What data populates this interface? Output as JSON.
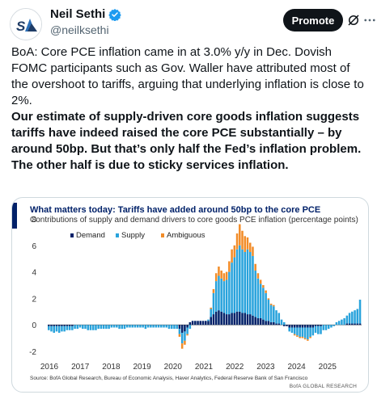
{
  "header": {
    "display_name": "Neil Sethi",
    "handle": "@neilksethi",
    "promote_label": "Promote",
    "icons": [
      "verified-badge-icon",
      "grok-icon",
      "more-icon"
    ],
    "colors": {
      "verified": "#1d9bf0",
      "promote_bg": "#0f1419"
    }
  },
  "tweet": {
    "paragraph1": "BoA: Core PCE inflation came in at 3.0% y/y in Dec. Dovish FOMC participants such as Gov. Waller have attributed most of the overshoot to tariffs, arguing that underlying inflation is close to 2%.",
    "paragraph2": "Our estimate of supply-driven core goods inflation suggests tariffs have indeed raised the core PCE substantially – by around 50bp. But that’s only half the Fed’s inflation problem. The other half is due to sticky services inflation."
  },
  "chart_data": {
    "type": "bar",
    "title": "What matters today: Tariffs have added around 50bp to the core PCE",
    "subtitle": "Contributions of supply and demand drivers to core goods PCE inflation (percentage points)",
    "stacked": true,
    "xlabel": "",
    "ylabel": "",
    "ylim": [
      -2,
      8
    ],
    "yticks": [
      -2,
      0,
      2,
      4,
      6,
      8
    ],
    "x_tick_labels": [
      "2016",
      "2017",
      "2018",
      "2019",
      "2020",
      "2021",
      "2022",
      "2023",
      "2024",
      "2025"
    ],
    "x_range": [
      "2016-01",
      "2025-12"
    ],
    "legend_position": "top-left",
    "grid": false,
    "colors": {
      "Demand": "#012169",
      "Supply": "#29a3dc",
      "Ambiguous": "#f28c28"
    },
    "x": [
      "2016-01",
      "2016-02",
      "2016-03",
      "2016-04",
      "2016-05",
      "2016-06",
      "2016-07",
      "2016-08",
      "2016-09",
      "2016-10",
      "2016-11",
      "2016-12",
      "2017-01",
      "2017-02",
      "2017-03",
      "2017-04",
      "2017-05",
      "2017-06",
      "2017-07",
      "2017-08",
      "2017-09",
      "2017-10",
      "2017-11",
      "2017-12",
      "2018-01",
      "2018-02",
      "2018-03",
      "2018-04",
      "2018-05",
      "2018-06",
      "2018-07",
      "2018-08",
      "2018-09",
      "2018-10",
      "2018-11",
      "2018-12",
      "2019-01",
      "2019-02",
      "2019-03",
      "2019-04",
      "2019-05",
      "2019-06",
      "2019-07",
      "2019-08",
      "2019-09",
      "2019-10",
      "2019-11",
      "2019-12",
      "2020-01",
      "2020-02",
      "2020-03",
      "2020-04",
      "2020-05",
      "2020-06",
      "2020-07",
      "2020-08",
      "2020-09",
      "2020-10",
      "2020-11",
      "2020-12",
      "2021-01",
      "2021-02",
      "2021-03",
      "2021-04",
      "2021-05",
      "2021-06",
      "2021-07",
      "2021-08",
      "2021-09",
      "2021-10",
      "2021-11",
      "2021-12",
      "2022-01",
      "2022-02",
      "2022-03",
      "2022-04",
      "2022-05",
      "2022-06",
      "2022-07",
      "2022-08",
      "2022-09",
      "2022-10",
      "2022-11",
      "2022-12",
      "2023-01",
      "2023-02",
      "2023-03",
      "2023-04",
      "2023-05",
      "2023-06",
      "2023-07",
      "2023-08",
      "2023-09",
      "2023-10",
      "2023-11",
      "2023-12",
      "2024-01",
      "2024-02",
      "2024-03",
      "2024-04",
      "2024-05",
      "2024-06",
      "2024-07",
      "2024-08",
      "2024-09",
      "2024-10",
      "2024-11",
      "2024-12",
      "2025-01",
      "2025-02",
      "2025-03",
      "2025-04",
      "2025-05",
      "2025-06",
      "2025-07",
      "2025-08",
      "2025-09",
      "2025-10",
      "2025-11",
      "2025-12"
    ],
    "series": [
      {
        "name": "Demand",
        "values": [
          -0.1,
          -0.1,
          -0.1,
          -0.1,
          -0.1,
          -0.1,
          -0.1,
          -0.1,
          -0.1,
          -0.1,
          0.0,
          0.0,
          0.0,
          0.0,
          0.0,
          0.0,
          0.0,
          0.0,
          0.0,
          0.0,
          0.0,
          0.0,
          0.0,
          0.0,
          0.0,
          0.0,
          0.0,
          0.0,
          0.0,
          0.0,
          0.0,
          0.0,
          0.0,
          0.0,
          0.0,
          0.0,
          0.0,
          0.0,
          0.0,
          0.0,
          0.0,
          0.0,
          0.0,
          0.0,
          0.0,
          0.0,
          0.0,
          0.0,
          0.0,
          0.0,
          -0.3,
          -0.6,
          -0.5,
          -0.2,
          0.2,
          0.3,
          0.3,
          0.3,
          0.3,
          0.3,
          0.3,
          0.3,
          0.6,
          0.8,
          1.0,
          1.1,
          1.0,
          0.9,
          0.8,
          0.8,
          0.9,
          0.9,
          1.0,
          1.0,
          0.9,
          0.9,
          0.8,
          0.8,
          0.7,
          0.6,
          0.5,
          0.5,
          0.4,
          0.3,
          0.3,
          0.2,
          0.2,
          0.1,
          0.1,
          0.0,
          -0.1,
          -0.1,
          -0.2,
          -0.2,
          -0.2,
          -0.2,
          -0.2,
          -0.2,
          -0.2,
          -0.2,
          -0.2,
          -0.2,
          -0.1,
          -0.1,
          -0.1,
          0.0,
          0.0,
          0.0,
          0.0,
          0.0,
          0.0,
          0.0,
          0.0,
          0.0,
          0.1,
          0.1,
          0.1,
          0.1,
          0.1,
          0.1
        ]
      },
      {
        "name": "Supply",
        "values": [
          -0.3,
          -0.4,
          -0.5,
          -0.4,
          -0.5,
          -0.4,
          -0.4,
          -0.3,
          -0.3,
          -0.3,
          -0.3,
          -0.3,
          -0.2,
          -0.3,
          -0.3,
          -0.4,
          -0.4,
          -0.4,
          -0.4,
          -0.3,
          -0.3,
          -0.3,
          -0.3,
          -0.3,
          -0.2,
          -0.2,
          -0.2,
          -0.3,
          -0.3,
          -0.3,
          -0.2,
          -0.2,
          -0.2,
          -0.2,
          -0.2,
          -0.2,
          -0.2,
          -0.3,
          -0.2,
          -0.2,
          -0.2,
          -0.2,
          -0.2,
          -0.2,
          -0.2,
          -0.2,
          -0.3,
          -0.3,
          -0.3,
          -0.3,
          -0.4,
          -0.8,
          -0.7,
          -0.5,
          -0.3,
          0.0,
          0.0,
          0.0,
          0.0,
          0.0,
          0.0,
          0.1,
          0.6,
          1.6,
          2.3,
          2.6,
          2.5,
          2.4,
          2.6,
          3.2,
          3.8,
          4.2,
          4.7,
          5.0,
          4.8,
          4.6,
          4.9,
          4.7,
          4.5,
          3.5,
          3.0,
          2.6,
          2.4,
          2.1,
          1.6,
          1.3,
          1.2,
          1.0,
          0.8,
          0.4,
          0.2,
          0.0,
          -0.3,
          -0.4,
          -0.5,
          -0.6,
          -0.7,
          -0.7,
          -0.8,
          -0.9,
          -0.7,
          -0.6,
          -0.5,
          -0.6,
          -0.6,
          -0.4,
          -0.4,
          -0.3,
          -0.2,
          -0.1,
          0.2,
          0.3,
          0.4,
          0.5,
          0.6,
          0.8,
          0.9,
          1.0,
          1.1,
          1.8
        ]
      },
      {
        "name": "Ambiguous",
        "values": [
          0.0,
          0.0,
          0.0,
          0.0,
          0.0,
          0.0,
          0.0,
          0.0,
          0.0,
          0.0,
          0.0,
          0.0,
          0.0,
          0.0,
          0.0,
          0.0,
          0.0,
          0.0,
          0.0,
          0.0,
          0.0,
          0.0,
          0.0,
          0.0,
          0.0,
          0.0,
          0.0,
          0.0,
          0.0,
          0.0,
          0.0,
          0.0,
          0.0,
          0.0,
          0.0,
          0.0,
          0.0,
          0.0,
          0.0,
          0.0,
          0.0,
          0.0,
          0.0,
          0.0,
          0.0,
          0.0,
          0.0,
          0.0,
          0.0,
          0.0,
          -0.2,
          -0.4,
          -0.3,
          -0.1,
          0.0,
          0.0,
          0.0,
          0.0,
          0.0,
          0.0,
          0.0,
          0.0,
          0.1,
          0.3,
          0.6,
          0.7,
          0.6,
          0.6,
          0.6,
          0.8,
          1.0,
          0.9,
          1.2,
          1.6,
          1.4,
          1.2,
          0.9,
          0.7,
          0.7,
          0.5,
          0.4,
          0.3,
          0.2,
          0.2,
          0.1,
          0.1,
          0.1,
          0.0,
          0.0,
          0.0,
          0.0,
          0.0,
          0.0,
          0.0,
          -0.1,
          -0.1,
          -0.1,
          -0.1,
          -0.1,
          -0.1,
          -0.1,
          0.0,
          0.0,
          0.0,
          0.0,
          0.0,
          0.0,
          0.0,
          0.0,
          0.0,
          0.0,
          0.0,
          0.0,
          0.0,
          0.0,
          0.0,
          0.0,
          0.0,
          0.0,
          0.0
        ]
      }
    ],
    "source": "Source: BofA Global Research, Bureau of Economic Analysis, Haver Analytics, Federal Reserve Bank of San Francisco",
    "brand": "BofA GLOBAL RESEARCH"
  }
}
